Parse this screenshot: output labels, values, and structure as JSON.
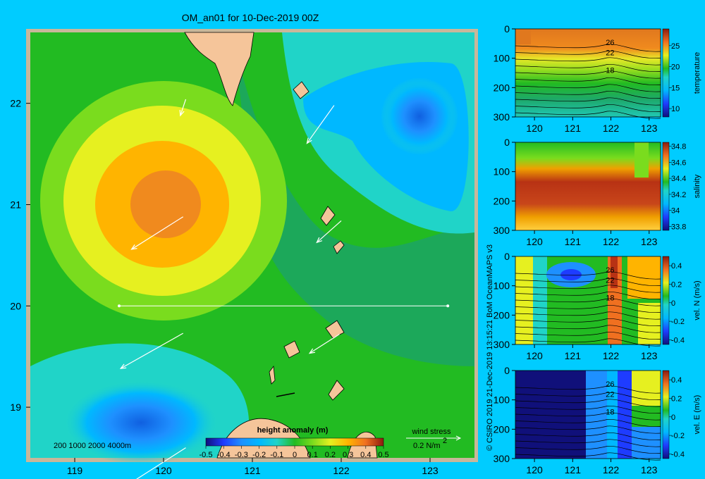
{
  "page": {
    "title": "OM_an01 for 10-Dec-2019 00Z",
    "side_credit": "© CSIRO 2019   21-Dec-2019 13:15:21 BoM OceanMAPS v3",
    "depth_legend": "200  1000  2000  4000m",
    "colorbar_title": "height anomaly (m)",
    "wind_title": "wind stress",
    "wind_scale": "0.2 N/m",
    "wind_scale_sup": "2"
  },
  "colors": {
    "background": "#00ccff",
    "frame": "#c9b79a",
    "land": "#f5c59a",
    "green": "#22bb22"
  },
  "chart_data": [
    {
      "type": "heatmap",
      "name": "map",
      "title": "OM_an01 for 10-Dec-2019 00Z",
      "xlim": [
        118.5,
        123.5
      ],
      "ylim": [
        18.5,
        22.7
      ],
      "x_ticks": [
        119,
        120,
        121,
        122,
        123
      ],
      "x_tick_labels": [
        "119",
        "120",
        "121",
        "122",
        "123"
      ],
      "y_ticks": [
        19,
        20,
        21,
        22
      ],
      "y_tick_labels": [
        "19",
        "20",
        "21",
        "22"
      ],
      "colorbar": {
        "label": "height anomaly (m)",
        "range": [
          -0.5,
          0.5
        ],
        "ticks": [
          -0.5,
          -0.4,
          -0.3,
          -0.2,
          -0.1,
          0,
          0.1,
          0.2,
          0.3,
          0.4,
          0.5
        ],
        "tick_labels": [
          "-0.5",
          "-0.4",
          "-0.3",
          "-0.2",
          "-0.1",
          "0",
          "0.1",
          "0.2",
          "0.3",
          "0.4",
          "0.5"
        ]
      },
      "anomaly_features": [
        {
          "lon": 119.9,
          "lat": 20.95,
          "value": 0.3
        },
        {
          "lon": 122.6,
          "lat": 21.8,
          "value": -0.3
        },
        {
          "lon": 120.1,
          "lat": 18.7,
          "value": -0.2
        }
      ],
      "section_line": {
        "lon": [
          119.5,
          123.2
        ],
        "lat": [
          20.0,
          20.0
        ]
      },
      "wind_vectors": [
        {
          "lon": 120.25,
          "lat": 22.04,
          "u": -0.04,
          "v": -0.12
        },
        {
          "lon": 121.92,
          "lat": 21.98,
          "u": -0.2,
          "v": -0.28
        },
        {
          "lon": 120.22,
          "lat": 20.88,
          "u": -0.38,
          "v": -0.24
        },
        {
          "lon": 122.0,
          "lat": 20.84,
          "u": -0.18,
          "v": -0.16
        },
        {
          "lon": 120.22,
          "lat": 19.73,
          "u": -0.46,
          "v": -0.26
        },
        {
          "lon": 121.98,
          "lat": 19.72,
          "u": -0.22,
          "v": -0.14
        },
        {
          "lon": 120.25,
          "lat": 18.6,
          "u": -0.5,
          "v": -0.32
        }
      ],
      "wind_legend": {
        "label": "wind stress",
        "magnitude": 0.2,
        "units": "N/m2"
      }
    },
    {
      "type": "heatmap",
      "name": "temperature",
      "xlim": [
        119.5,
        123.3
      ],
      "ylim": [
        300,
        0
      ],
      "x_ticks": [
        120,
        121,
        122,
        123
      ],
      "x_tick_labels": [
        "120",
        "121",
        "122",
        "123"
      ],
      "y_ticks": [
        0,
        100,
        200,
        300
      ],
      "y_tick_labels": [
        "0",
        "100",
        "200",
        "300"
      ],
      "colorbar": {
        "label": "temperature",
        "range": [
          8,
          29
        ],
        "ticks": [
          10,
          15,
          20,
          25
        ],
        "tick_labels": [
          "10",
          "15",
          "20",
          "25"
        ]
      },
      "contour_labels": [
        {
          "x": 121.5,
          "depth": 45,
          "text": "26"
        },
        {
          "x": 121.5,
          "depth": 80,
          "text": "22"
        },
        {
          "x": 121.5,
          "depth": 140,
          "text": "18"
        }
      ]
    },
    {
      "type": "heatmap",
      "name": "salinity",
      "xlim": [
        119.5,
        123.3
      ],
      "ylim": [
        300,
        0
      ],
      "x_ticks": [
        120,
        121,
        122,
        123
      ],
      "x_tick_labels": [
        "120",
        "121",
        "122",
        "123"
      ],
      "y_ticks": [
        0,
        100,
        200,
        300
      ],
      "y_tick_labels": [
        "0",
        "100",
        "200",
        "300"
      ],
      "colorbar": {
        "label": "salinity",
        "range": [
          33.75,
          34.85
        ],
        "ticks": [
          33.8,
          34,
          34.2,
          34.4,
          34.6,
          34.8
        ],
        "tick_labels": [
          "33.8",
          "34",
          "34.2",
          "34.4",
          "34.6",
          "34.8"
        ]
      }
    },
    {
      "type": "heatmap",
      "name": "vel-n",
      "xlim": [
        119.5,
        123.3
      ],
      "ylim": [
        300,
        0
      ],
      "x_ticks": [
        120,
        121,
        122,
        123
      ],
      "x_tick_labels": [
        "120",
        "121",
        "122",
        "123"
      ],
      "y_ticks": [
        0,
        100,
        200,
        300
      ],
      "y_tick_labels": [
        "0",
        "100",
        "200",
        "300"
      ],
      "colorbar": {
        "label": "vel. N (m/s)",
        "range": [
          -0.45,
          0.5
        ],
        "ticks": [
          -0.4,
          -0.2,
          0,
          0.2,
          0.4
        ],
        "tick_labels": [
          "-0.4",
          "-0.2",
          "0",
          "0.2",
          "0.4"
        ]
      },
      "contour_labels": [
        {
          "x": 121.5,
          "depth": 45,
          "text": "26"
        },
        {
          "x": 121.5,
          "depth": 80,
          "text": "22"
        },
        {
          "x": 121.5,
          "depth": 140,
          "text": "18"
        }
      ]
    },
    {
      "type": "heatmap",
      "name": "vel-e",
      "xlim": [
        119.5,
        123.3
      ],
      "ylim": [
        300,
        0
      ],
      "x_ticks": [
        120,
        121,
        122,
        123
      ],
      "x_tick_labels": [
        "120",
        "121",
        "122",
        "123"
      ],
      "y_ticks": [
        0,
        100,
        200,
        300
      ],
      "y_tick_labels": [
        "0",
        "100",
        "200",
        "300"
      ],
      "colorbar": {
        "label": "vel. E (m/s)",
        "range": [
          -0.45,
          0.5
        ],
        "ticks": [
          -0.4,
          -0.2,
          0,
          0.2,
          0.4
        ],
        "tick_labels": [
          "-0.4",
          "-0.2",
          "0",
          "0.2",
          "0.4"
        ]
      },
      "contour_labels": [
        {
          "x": 121.5,
          "depth": 45,
          "text": "26"
        },
        {
          "x": 121.5,
          "depth": 80,
          "text": "22"
        },
        {
          "x": 121.5,
          "depth": 140,
          "text": "18"
        }
      ]
    }
  ]
}
